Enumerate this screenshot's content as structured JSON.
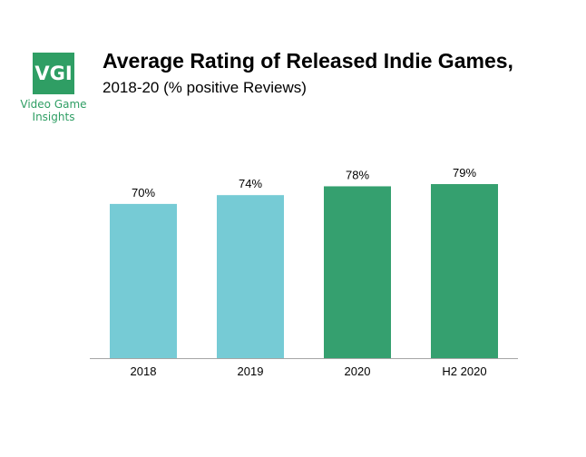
{
  "logo": {
    "mark": "VGI",
    "line1": "Video Game",
    "line2": "Insights",
    "color": "#2f9e64"
  },
  "title": "Average Rating of Released Indie Games,",
  "subtitle": "2018-20 (% positive Reviews)",
  "chart_data": {
    "type": "bar",
    "categories": [
      "2018",
      "2019",
      "2020",
      "H2 2020"
    ],
    "values": [
      70,
      74,
      78,
      79
    ],
    "data_labels": [
      "70%",
      "74%",
      "78%",
      "79%"
    ],
    "colors": [
      "#76cbd5",
      "#76cbd5",
      "#35a06f",
      "#35a06f"
    ],
    "title": "Average Rating of Released Indie Games,",
    "subtitle": "2018-20 (% positive Reviews)",
    "xlabel": "",
    "ylabel": "",
    "ylim": [
      0,
      100
    ],
    "grid": false,
    "legend": "none"
  }
}
